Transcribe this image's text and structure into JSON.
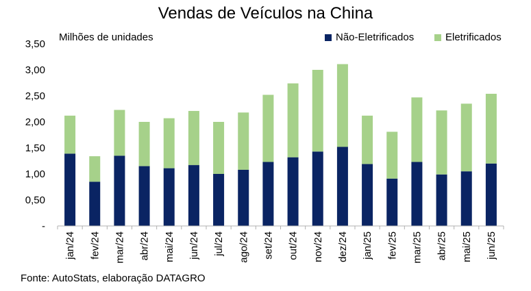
{
  "chart_data": {
    "type": "bar",
    "stacked": true,
    "title": "Vendas de Veículos na China",
    "ylabel": "Milhões de unidades",
    "source": "Fonte: AutoStats, elaboração DATAGRO",
    "categories": [
      "jan/24",
      "fev/24",
      "mar/24",
      "abr/24",
      "mai/24",
      "jun/24",
      "jul/24",
      "ago/24",
      "set/24",
      "out/24",
      "nov/24",
      "dez/24",
      "jan/25",
      "fev/25",
      "mar/25",
      "abr/25",
      "mai/25",
      "jun/25"
    ],
    "series": [
      {
        "name": "Não-Eletrificados",
        "color": "#0a2463",
        "values": [
          1.39,
          0.85,
          1.35,
          1.15,
          1.11,
          1.17,
          1.0,
          1.08,
          1.23,
          1.32,
          1.43,
          1.52,
          1.19,
          0.91,
          1.23,
          0.99,
          1.05,
          1.2
        ]
      },
      {
        "name": "Eletrificados",
        "color": "#a6d18a",
        "values": [
          0.73,
          0.49,
          0.88,
          0.85,
          0.96,
          1.04,
          1.0,
          1.1,
          1.29,
          1.42,
          1.57,
          1.59,
          0.93,
          0.9,
          1.24,
          1.23,
          1.3,
          1.34
        ]
      }
    ],
    "ylim": [
      0,
      3.5
    ],
    "yticks": [
      "-",
      "0,50",
      "1,00",
      "1,50",
      "2,00",
      "2,50",
      "3,00",
      "3,50"
    ],
    "legend_position": "top-right",
    "grid": false
  }
}
